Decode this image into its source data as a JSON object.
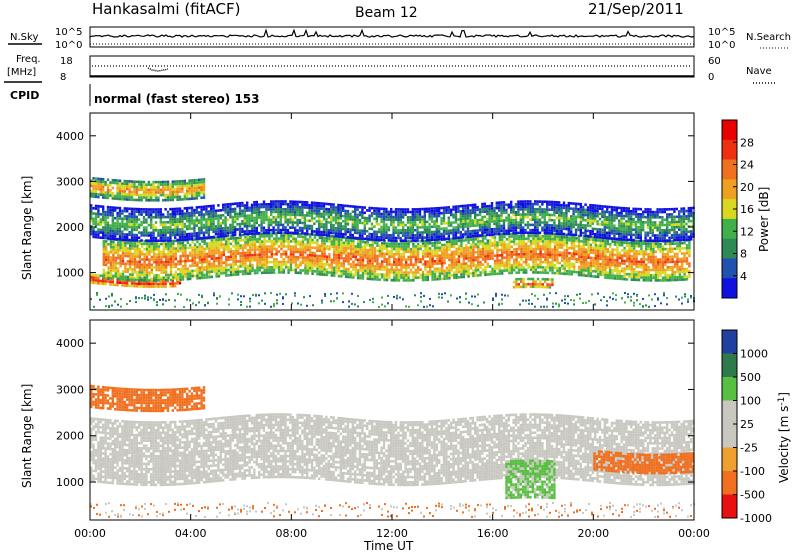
{
  "header": {
    "station": "Hankasalmi (fitACF)",
    "beam": "Beam 12",
    "date": "21/Sep/2011"
  },
  "strips": {
    "nsky_label": "N.Sky",
    "nsearch_label": "N.Search",
    "nsky_ticks": [
      "10^5",
      "10^0"
    ],
    "nsearch_ticks": [
      "10^5",
      "10^0"
    ],
    "freq_label": "Freq.",
    "freq_unit": "[MHz]",
    "freq_ticks": [
      "18",
      "8"
    ],
    "nave_label": "Nave",
    "nave_ticks": [
      "60",
      "0"
    ],
    "cpid_label": "CPID",
    "cpid_text": "normal (fast stereo) 153"
  },
  "panels": {
    "ylabel": "Slant Range [km]",
    "yticks": [
      "4000",
      "3000",
      "2000",
      "1000"
    ],
    "xlabel": "Time UT",
    "xticks": [
      "00:00",
      "04:00",
      "08:00",
      "12:00",
      "16:00",
      "20:00",
      "00:00"
    ]
  },
  "colorbars": {
    "power_label": "Power [dB]",
    "power_ticks": [
      "28",
      "24",
      "20",
      "16",
      "12",
      "8",
      "4"
    ],
    "velocity_label": "Velocity [m s",
    "velocity_sup": "-1",
    "velocity_close": "]",
    "velocity_ticks": [
      "1000",
      "500",
      "100",
      "25",
      "-25",
      "-100",
      "-500",
      "-1000"
    ]
  },
  "colors": {
    "power_scale": [
      "#1010e0",
      "#2050b0",
      "#2e8a55",
      "#40b04a",
      "#d8d820",
      "#f0a020",
      "#f07020",
      "#ee3010",
      "#e80000"
    ],
    "velocity_scale": [
      "#2040a0",
      "#2e7a4a",
      "#58c040",
      "#c8c8c0",
      "#c8c8c0",
      "#f0a030",
      "#f07020",
      "#e81010"
    ]
  },
  "chart_data": [
    {
      "type": "heatmap",
      "title": "Power",
      "ylabel": "Slant Range [km]",
      "xlabel": "Time UT",
      "x_range": [
        "00:00",
        "24:00"
      ],
      "ylim": [
        180,
        4500
      ],
      "colorbar": {
        "label": "Power [dB]",
        "range": [
          0,
          32
        ],
        "ticks": [
          28,
          24,
          20,
          16,
          12,
          8,
          4
        ]
      },
      "features": [
        {
          "time_start_h": 0,
          "time_end_h": 3.6,
          "range_start_km": 780,
          "range_end_km": 980,
          "value_db": 29
        },
        {
          "time_start_h": 0.5,
          "time_end_h": 23.8,
          "range_start_km": 900,
          "range_end_km": 1800,
          "value_db": 24
        },
        {
          "time_start_h": 0,
          "time_end_h": 24,
          "range_start_km": 1800,
          "range_end_km": 2500,
          "value_db": 14
        },
        {
          "time_start_h": 0,
          "time_end_h": 4.5,
          "range_start_km": 2700,
          "range_end_km": 3100,
          "value_db": 22
        },
        {
          "time_start_h": 16.8,
          "time_end_h": 18.4,
          "range_start_km": 600,
          "range_end_km": 800,
          "value_db": 26
        }
      ]
    },
    {
      "type": "heatmap",
      "title": "Velocity",
      "ylabel": "Slant Range [km]",
      "xlabel": "Time UT",
      "x_range": [
        "00:00",
        "24:00"
      ],
      "ylim": [
        180,
        4500
      ],
      "colorbar": {
        "label": "Velocity [m s-1]",
        "ticks": [
          1000,
          500,
          100,
          25,
          -25,
          -100,
          -500,
          -1000
        ]
      },
      "features": [
        {
          "time_start_h": 0,
          "time_end_h": 24,
          "range_start_km": 1000,
          "range_end_km": 2400,
          "value_ms": 0
        },
        {
          "time_start_h": 0,
          "time_end_h": 4.5,
          "range_start_km": 2600,
          "range_end_km": 3100,
          "value_ms": -300
        },
        {
          "time_start_h": 16.5,
          "time_end_h": 18.5,
          "range_start_km": 600,
          "range_end_km": 1400,
          "value_ms": 200
        },
        {
          "time_start_h": 20,
          "time_end_h": 24,
          "range_start_km": 1300,
          "range_end_km": 1700,
          "value_ms": -300
        }
      ]
    }
  ]
}
